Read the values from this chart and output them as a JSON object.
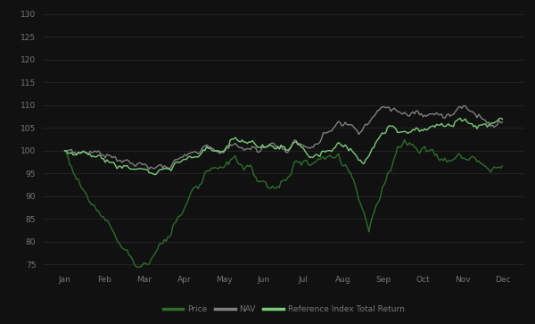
{
  "background_color": "#111111",
  "text_color": "#777777",
  "grid_color": "#2a2a2a",
  "lines": [
    {
      "label": "Price",
      "color": "#2d6e2d",
      "linewidth": 1.0
    },
    {
      "label": "NAV",
      "color": "#808080",
      "linewidth": 1.0
    },
    {
      "label": "Reference Index Total Return",
      "color": "#7acc7a",
      "linewidth": 1.0
    }
  ],
  "ylim": [
    74,
    131
  ],
  "yticks": [
    75,
    80,
    85,
    90,
    95,
    100,
    105,
    110,
    115,
    120,
    125,
    130
  ],
  "xtick_labels": [
    "Jan",
    "Feb",
    "Mar",
    "Apr",
    "May",
    "Jun",
    "Jul",
    "Aug",
    "Sep",
    "Oct",
    "Nov",
    "Dec"
  ],
  "legend_colors": [
    "#2d6e2d",
    "#808080",
    "#7acc7a"
  ],
  "legend_labels": [
    "Price",
    "NAV",
    "Reference Index Total Return"
  ]
}
